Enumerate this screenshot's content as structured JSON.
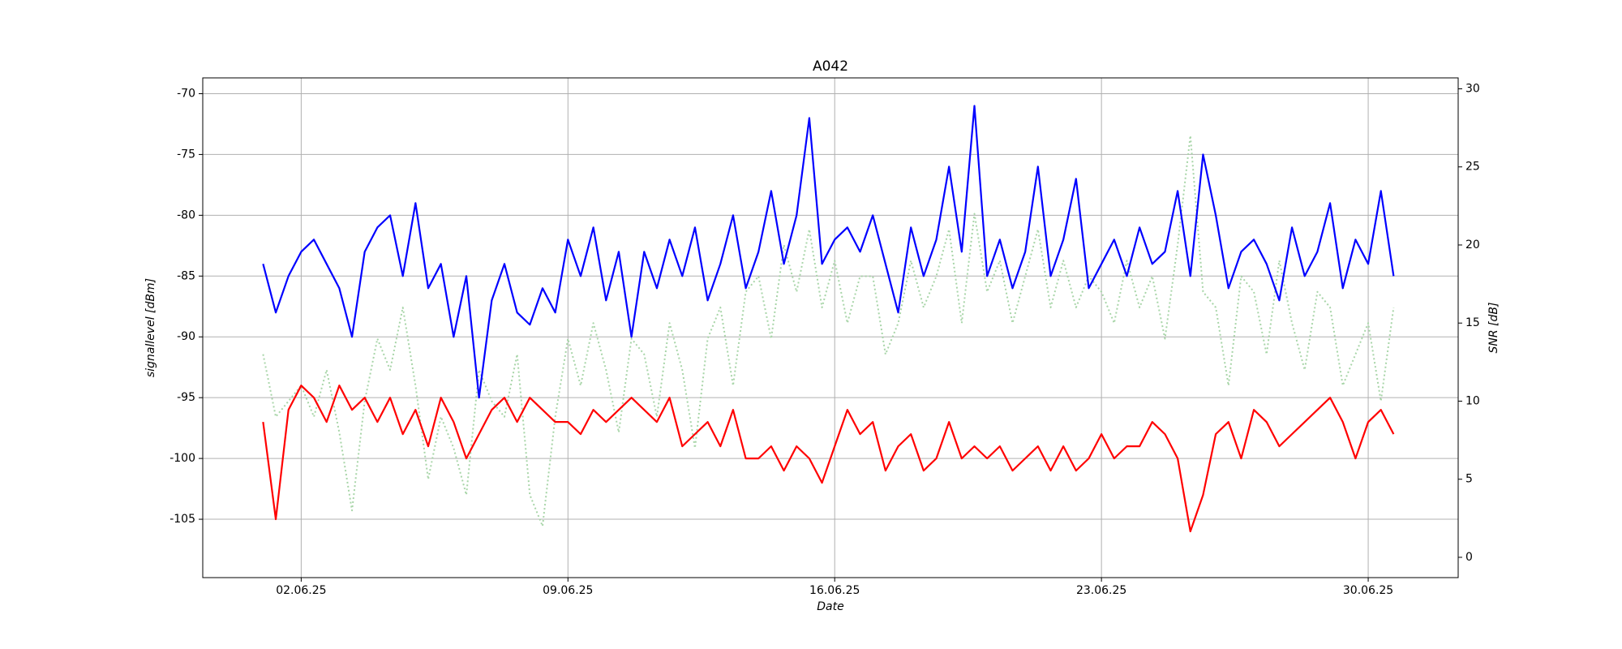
{
  "chart_data": {
    "type": "line",
    "title": "A042",
    "x_label": "Date",
    "y_label": "signallevel [dBm]",
    "y2_label": "SNR [dB]",
    "x": [
      "2025-06-01T00:00",
      "2025-06-01T08:00",
      "2025-06-01T16:00",
      "2025-06-02T00:00",
      "2025-06-02T08:00",
      "2025-06-02T16:00",
      "2025-06-03T00:00",
      "2025-06-03T08:00",
      "2025-06-03T16:00",
      "2025-06-04T00:00",
      "2025-06-04T08:00",
      "2025-06-04T16:00",
      "2025-06-05T00:00",
      "2025-06-05T08:00",
      "2025-06-05T16:00",
      "2025-06-06T00:00",
      "2025-06-06T08:00",
      "2025-06-06T16:00",
      "2025-06-07T00:00",
      "2025-06-07T08:00",
      "2025-06-07T16:00",
      "2025-06-08T00:00",
      "2025-06-08T08:00",
      "2025-06-08T16:00",
      "2025-06-09T00:00",
      "2025-06-09T08:00",
      "2025-06-09T16:00",
      "2025-06-10T00:00",
      "2025-06-10T08:00",
      "2025-06-10T16:00",
      "2025-06-11T00:00",
      "2025-06-11T08:00",
      "2025-06-11T16:00",
      "2025-06-12T00:00",
      "2025-06-12T08:00",
      "2025-06-12T16:00",
      "2025-06-13T00:00",
      "2025-06-13T08:00",
      "2025-06-13T16:00",
      "2025-06-14T00:00",
      "2025-06-14T08:00",
      "2025-06-14T16:00",
      "2025-06-15T00:00",
      "2025-06-15T08:00",
      "2025-06-15T16:00",
      "2025-06-16T00:00",
      "2025-06-16T08:00",
      "2025-06-16T16:00",
      "2025-06-17T00:00",
      "2025-06-17T08:00",
      "2025-06-17T16:00",
      "2025-06-18T00:00",
      "2025-06-18T08:00",
      "2025-06-18T16:00",
      "2025-06-19T00:00",
      "2025-06-19T08:00",
      "2025-06-19T16:00",
      "2025-06-20T00:00",
      "2025-06-20T08:00",
      "2025-06-20T16:00",
      "2025-06-21T00:00",
      "2025-06-21T08:00",
      "2025-06-21T16:00",
      "2025-06-22T00:00",
      "2025-06-22T08:00",
      "2025-06-22T16:00",
      "2025-06-23T00:00",
      "2025-06-23T08:00",
      "2025-06-23T16:00",
      "2025-06-24T00:00",
      "2025-06-24T08:00",
      "2025-06-24T16:00",
      "2025-06-25T00:00",
      "2025-06-25T08:00",
      "2025-06-25T16:00",
      "2025-06-26T00:00",
      "2025-06-26T08:00",
      "2025-06-26T16:00",
      "2025-06-27T00:00",
      "2025-06-27T08:00",
      "2025-06-27T16:00",
      "2025-06-28T00:00",
      "2025-06-28T08:00",
      "2025-06-28T16:00",
      "2025-06-29T00:00",
      "2025-06-29T08:00",
      "2025-06-29T16:00",
      "2025-06-30T00:00",
      "2025-06-30T08:00",
      "2025-06-30T16:00"
    ],
    "series": [
      {
        "color": "#a8d5a8",
        "linestyle": "dotted",
        "axis": "y2",
        "values": [
          13,
          9,
          10,
          11,
          9,
          12,
          8,
          3,
          10,
          14,
          12,
          16,
          11,
          5,
          9,
          7,
          4,
          12,
          10,
          9,
          13,
          4,
          2,
          9,
          14,
          11,
          15,
          12,
          8,
          14,
          13,
          9,
          15,
          12,
          7,
          14,
          16,
          11,
          17,
          18,
          14,
          20,
          17,
          21,
          16,
          19,
          15,
          18,
          18,
          13,
          15,
          19,
          16,
          18,
          21,
          15,
          22,
          17,
          19,
          15,
          18,
          21,
          16,
          19,
          16,
          18,
          17,
          15,
          19,
          16,
          18,
          14,
          20,
          27,
          17,
          16,
          11,
          18,
          17,
          13,
          19,
          15,
          12,
          17,
          16,
          11,
          13,
          15,
          10,
          16
        ]
      },
      {
        "color": "#0000ff",
        "linestyle": "solid",
        "values": [
          -84,
          -88,
          -85,
          -83,
          -82,
          -84,
          -86,
          -90,
          -83,
          -81,
          -80,
          -85,
          -79,
          -86,
          -84,
          -90,
          -85,
          -95,
          -87,
          -84,
          -88,
          -89,
          -86,
          -88,
          -82,
          -85,
          -81,
          -87,
          -83,
          -90,
          -83,
          -86,
          -82,
          -85,
          -81,
          -87,
          -84,
          -80,
          -86,
          -83,
          -78,
          -84,
          -80,
          -72,
          -84,
          -82,
          -81,
          -83,
          -80,
          -84,
          -88,
          -81,
          -85,
          -82,
          -76,
          -83,
          -71,
          -85,
          -82,
          -86,
          -83,
          -76,
          -85,
          -82,
          -77,
          -86,
          -84,
          -82,
          -85,
          -81,
          -84,
          -83,
          -78,
          -85,
          -75,
          -80,
          -86,
          -83,
          -82,
          -84,
          -87,
          -81,
          -85,
          -83,
          -79,
          -86,
          -82,
          -84,
          -78,
          -85
        ]
      },
      {
        "color": "#ff0000",
        "linestyle": "solid",
        "values": [
          -97,
          -105,
          -96,
          -94,
          -95,
          -97,
          -94,
          -96,
          -95,
          -97,
          -95,
          -98,
          -96,
          -99,
          -95,
          -97,
          -100,
          -98,
          -96,
          -95,
          -97,
          -95,
          -96,
          -97,
          -97,
          -98,
          -96,
          -97,
          -96,
          -95,
          -96,
          -97,
          -95,
          -99,
          -98,
          -97,
          -99,
          -96,
          -100,
          -100,
          -99,
          -101,
          -99,
          -100,
          -102,
          -99,
          -96,
          -98,
          -97,
          -101,
          -99,
          -98,
          -101,
          -100,
          -97,
          -100,
          -99,
          -100,
          -99,
          -101,
          -100,
          -99,
          -101,
          -99,
          -101,
          -100,
          -98,
          -100,
          -99,
          -99,
          -97,
          -98,
          -100,
          -106,
          -103,
          -98,
          -97,
          -100,
          -96,
          -97,
          -99,
          -98,
          -97,
          -96,
          -95,
          -97,
          -100,
          -97,
          -96,
          -98
        ]
      }
    ],
    "xlim": [
      "2025-05-30T10:00",
      "2025-07-02T08:40"
    ],
    "xticks": [
      {
        "value": "2025-06-02T00:00",
        "label": "02.06.25"
      },
      {
        "value": "2025-06-09T00:00",
        "label": "09.06.25"
      },
      {
        "value": "2025-06-16T00:00",
        "label": "16.06.25"
      },
      {
        "value": "2025-06-23T00:00",
        "label": "23.06.25"
      },
      {
        "value": "2025-06-30T00:00",
        "label": "30.06.25"
      }
    ],
    "ylim": [
      -109.8,
      -68.7
    ],
    "yticks": [
      -105,
      -100,
      -95,
      -90,
      -85,
      -80,
      -75,
      -70
    ],
    "y2lim": [
      -1.3,
      30.7
    ],
    "y2ticks": [
      0,
      5,
      10,
      15,
      20,
      25,
      30
    ],
    "grid": true
  }
}
